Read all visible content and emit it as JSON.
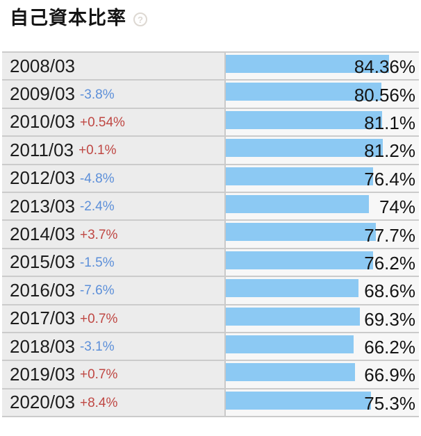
{
  "header": {
    "title": "自己資本比率",
    "help_icon": "?"
  },
  "colors": {
    "bar": "#8cc9f3",
    "change_up": "#bf4743",
    "change_down": "#5c8fd9",
    "label_cell_bg": "#ececec",
    "bar_cell_bg": "#f7f7f7",
    "border": "#cbcbcb",
    "text": "#1c1c1c"
  },
  "chart_data": {
    "type": "bar",
    "orientation": "horizontal",
    "title": "自己資本比率",
    "value_unit": "%",
    "value_range": [
      0,
      100
    ],
    "legend": "none",
    "grid": "off",
    "categories": [
      "2008/03",
      "2009/03",
      "2010/03",
      "2011/03",
      "2012/03",
      "2013/03",
      "2014/03",
      "2015/03",
      "2016/03",
      "2017/03",
      "2018/03",
      "2019/03",
      "2020/03"
    ],
    "values": [
      84.36,
      80.56,
      81.1,
      81.2,
      76.4,
      74,
      77.7,
      76.2,
      68.6,
      69.3,
      66.2,
      66.9,
      75.3
    ],
    "value_labels": [
      "84.36%",
      "80.56%",
      "81.1%",
      "81.2%",
      "76.4%",
      "74%",
      "77.7%",
      "76.2%",
      "68.6%",
      "69.3%",
      "66.2%",
      "66.9%",
      "75.3%"
    ],
    "changes": [
      "",
      "-3.8%",
      "+0.54%",
      "+0.1%",
      "-4.8%",
      "-2.4%",
      "+3.7%",
      "-1.5%",
      "-7.6%",
      "+0.7%",
      "-3.1%",
      "+0.7%",
      "+8.4%"
    ],
    "change_directions": [
      "none",
      "down",
      "up",
      "up",
      "down",
      "down",
      "up",
      "down",
      "down",
      "up",
      "down",
      "up",
      "up"
    ]
  }
}
